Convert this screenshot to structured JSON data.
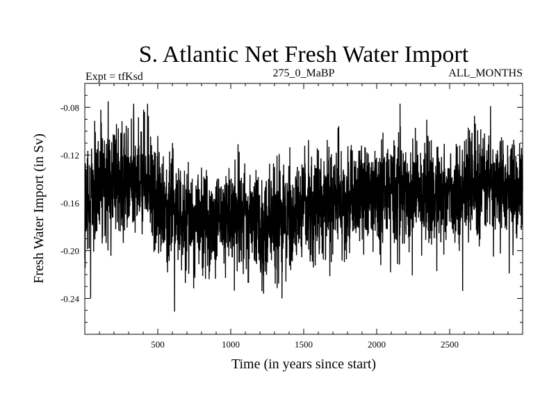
{
  "chart_data": {
    "type": "line",
    "title": "S. Atlantic Net Fresh Water Import",
    "subtitle_left": "Expt = tfKsd",
    "subtitle_center": "275_0_MaBP",
    "subtitle_right": "ALL_MONTHS",
    "xlabel": "Time (in years since start)",
    "ylabel": "Fresh Water Import (in Sv)",
    "xlim": [
      0,
      3000
    ],
    "ylim": [
      -0.27,
      -0.06
    ],
    "x_ticks": [
      {
        "value": 500,
        "label": "500"
      },
      {
        "value": 1000,
        "label": "1000"
      },
      {
        "value": 1500,
        "label": "1500"
      },
      {
        "value": 2000,
        "label": "2000"
      },
      {
        "value": 2500,
        "label": "2500"
      }
    ],
    "y_ticks": [
      {
        "value": -0.08,
        "label": "-0.08"
      },
      {
        "value": -0.12,
        "label": "-0.12"
      },
      {
        "value": -0.16,
        "label": "-0.16"
      },
      {
        "value": -0.2,
        "label": "-0.20"
      },
      {
        "value": -0.24,
        "label": "-0.24"
      }
    ],
    "grid": false,
    "series": [
      {
        "name": "Net Fresh Water Import",
        "color": "#000000",
        "sampling_interval_years": 1,
        "trend_anchors": {
          "x": [
            0,
            100,
            200,
            300,
            400,
            500,
            600,
            700,
            800,
            900,
            1000,
            1100,
            1200,
            1300,
            1400,
            1500,
            1600,
            1700,
            1800,
            1900,
            2000,
            2100,
            2200,
            2300,
            2400,
            2500,
            2600,
            2700,
            2800,
            2900,
            3000
          ],
          "y": [
            -0.165,
            -0.145,
            -0.14,
            -0.138,
            -0.142,
            -0.155,
            -0.168,
            -0.172,
            -0.175,
            -0.173,
            -0.176,
            -0.178,
            -0.176,
            -0.173,
            -0.17,
            -0.165,
            -0.16,
            -0.158,
            -0.157,
            -0.155,
            -0.152,
            -0.15,
            -0.15,
            -0.152,
            -0.153,
            -0.152,
            -0.15,
            -0.148,
            -0.147,
            -0.145,
            -0.145
          ]
        },
        "noise_std": 0.022,
        "notable_points": [
          {
            "x": 5,
            "y": -0.16
          },
          {
            "x": 40,
            "y": -0.24
          },
          {
            "x": 160,
            "y": -0.075
          },
          {
            "x": 335,
            "y": -0.077
          },
          {
            "x": 430,
            "y": -0.077
          },
          {
            "x": 615,
            "y": -0.251
          },
          {
            "x": 1225,
            "y": -0.236
          },
          {
            "x": 2160,
            "y": -0.077
          },
          {
            "x": 2780,
            "y": -0.079
          },
          {
            "x": 2800,
            "y": -0.205
          },
          {
            "x": 3000,
            "y": -0.15
          }
        ]
      }
    ]
  }
}
